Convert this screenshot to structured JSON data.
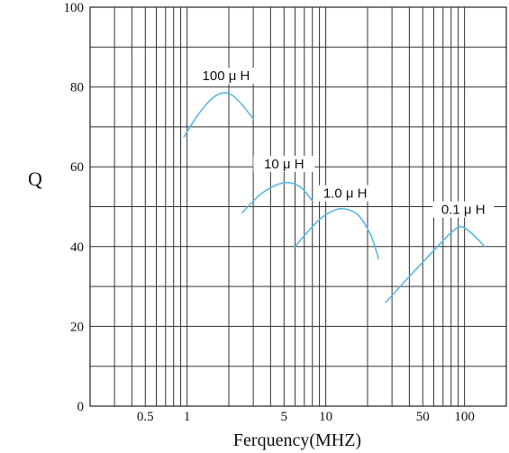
{
  "chart_data": {
    "type": "line",
    "title": "",
    "xlabel": "Ferquency(MHZ)",
    "ylabel": "Q",
    "x_scale": "log",
    "xlim": [
      0.2,
      200
    ],
    "ylim": [
      0,
      100
    ],
    "grid": true,
    "x_ticks": [
      {
        "value": 0.5,
        "label": "0.5"
      },
      {
        "value": 1,
        "label": "1"
      },
      {
        "value": 5,
        "label": "5"
      },
      {
        "value": 10,
        "label": "10"
      },
      {
        "value": 50,
        "label": "50"
      },
      {
        "value": 100,
        "label": "100"
      }
    ],
    "y_ticks": [
      {
        "value": 0,
        "label": "0"
      },
      {
        "value": 20,
        "label": "20"
      },
      {
        "value": 40,
        "label": "40"
      },
      {
        "value": 60,
        "label": "60"
      },
      {
        "value": 80,
        "label": "80"
      },
      {
        "value": 100,
        "label": "100"
      }
    ],
    "series_color": "#5bb8e6",
    "series": [
      {
        "name": "100 μ H",
        "x": [
          0.95,
          1.2,
          1.5,
          1.8,
          2.1,
          2.5,
          3.0
        ],
        "y": [
          67.5,
          73,
          77,
          78.5,
          78,
          75.5,
          72
        ]
      },
      {
        "name": "10 μ H",
        "x": [
          2.5,
          3.5,
          5.0,
          6.5,
          8.0
        ],
        "y": [
          48.5,
          53.5,
          56,
          55,
          51.5
        ]
      },
      {
        "name": "1.0 μ H",
        "x": [
          6,
          8,
          10,
          13,
          17,
          21,
          24
        ],
        "y": [
          40,
          45,
          48,
          49.5,
          48,
          43,
          37
        ]
      },
      {
        "name": "0.1 μ H",
        "x": [
          27,
          40,
          60,
          80,
          95,
          115,
          140
        ],
        "y": [
          26,
          32.5,
          39,
          43.5,
          45,
          43,
          40
        ]
      }
    ]
  }
}
